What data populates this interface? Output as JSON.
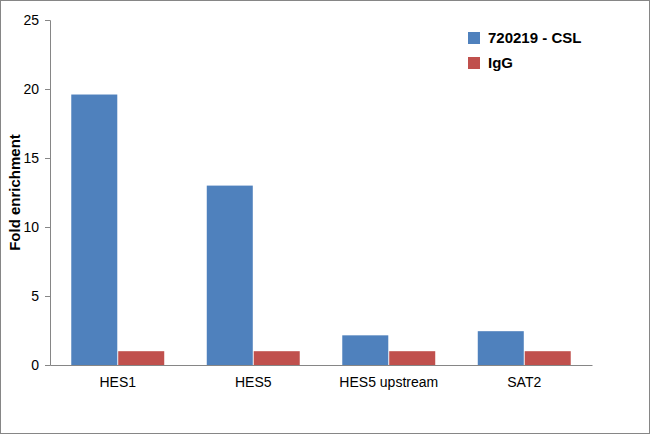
{
  "chart_data": {
    "type": "bar",
    "y_label": "Fold enrichment",
    "categories": [
      "HES1",
      "HES5",
      "HES5 upstream",
      "SAT2"
    ],
    "series": [
      {
        "name": "720219 - CSL",
        "color": "#4f81bd",
        "values": [
          19.6,
          13.0,
          2.15,
          2.45
        ]
      },
      {
        "name": "IgG",
        "color": "#c0504d",
        "values": [
          1,
          1,
          1,
          1
        ]
      }
    ],
    "ylim": [
      0,
      25
    ],
    "yticks": [
      0,
      5,
      10,
      15,
      20,
      25
    ],
    "grid": false,
    "legend": "top-right"
  }
}
